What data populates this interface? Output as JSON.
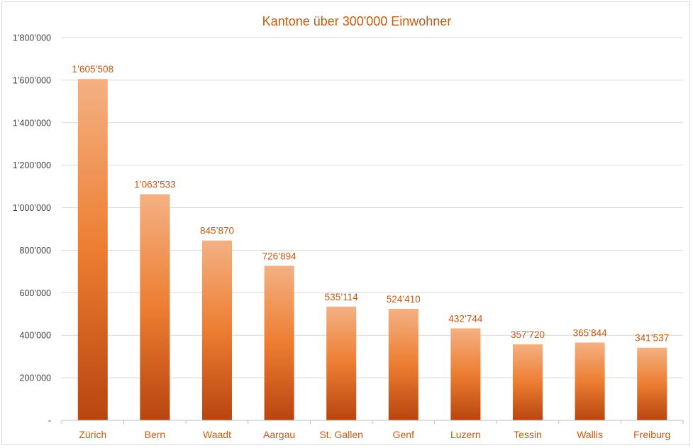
{
  "chart_data": {
    "type": "bar",
    "title": "Kantone über 300'000 Einwohner",
    "xlabel": "",
    "ylabel": "",
    "categories": [
      "Zürich",
      "Bern",
      "Waadt",
      "Aargau",
      "St. Gallen",
      "Genf",
      "Luzern",
      "Tessin",
      "Wallis",
      "Freiburg"
    ],
    "values": [
      1605508,
      1063533,
      845870,
      726894,
      535114,
      524410,
      432744,
      357720,
      365844,
      341537
    ],
    "data_labels": [
      "1’605’508",
      "1’063’533",
      "845’870",
      "726’894",
      "535’114",
      "524’410",
      "432’744",
      "357’720",
      "365’844",
      "341’537"
    ],
    "ylim": [
      0,
      1800000
    ],
    "y_ticks": [
      0,
      200000,
      400000,
      600000,
      800000,
      1000000,
      1200000,
      1400000,
      1600000,
      1800000
    ],
    "y_tick_labels": [
      "-",
      "200’000",
      "400’000",
      "600’000",
      "800’000",
      "1’000’000",
      "1’200’000",
      "1’400’000",
      "1’600’000",
      "1’800’000"
    ],
    "grid": true,
    "legend": "none",
    "colors": {
      "bar_top": "#f4b183",
      "bar_mid": "#ed7d31",
      "bar_bottom": "#b8450f",
      "label_text": "#c55a11",
      "axis_text": "#404040",
      "gridline": "#d9d9d9"
    }
  }
}
